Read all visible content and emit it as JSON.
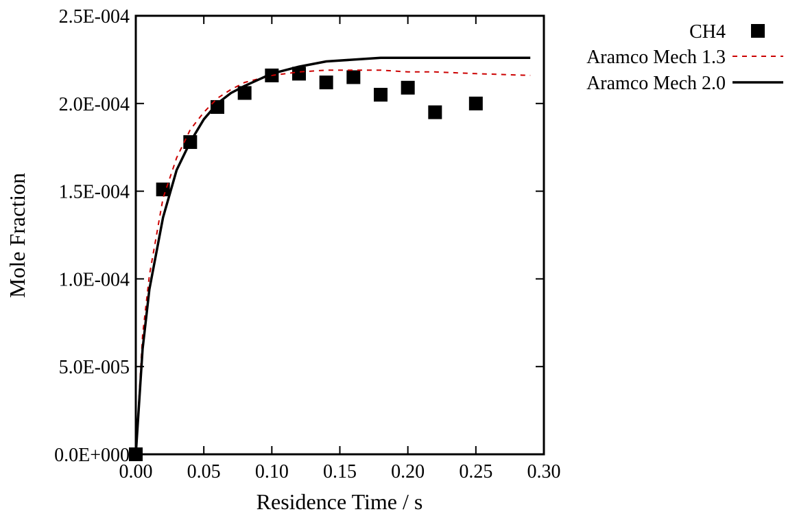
{
  "chart_data": {
    "type": "line",
    "title": "",
    "xlabel": "Residence Time / s",
    "ylabel": "Mole Fraction",
    "xlim": [
      0,
      0.3
    ],
    "ylim": [
      0,
      0.00025
    ],
    "x_ticks": [
      0,
      0.05,
      0.1,
      0.15,
      0.2,
      0.25,
      0.3
    ],
    "x_tick_labels": [
      "0.00",
      "0.05",
      "0.10",
      "0.15",
      "0.20",
      "0.25",
      "0.30"
    ],
    "y_ticks": [
      0,
      5e-05,
      0.0001,
      0.00015,
      0.0002,
      0.00025
    ],
    "y_tick_labels": [
      "0.0E+000",
      "5.0E-005",
      "1.0E-004",
      "1.5E-004",
      "2.0E-004",
      "2.5E-004"
    ],
    "grid": false,
    "legend_position": "outside-top-right",
    "series": [
      {
        "name": "CH4",
        "style": "markers",
        "marker": "square",
        "color": "#000000",
        "x": [
          0.0,
          0.02,
          0.04,
          0.06,
          0.08,
          0.1,
          0.12,
          0.14,
          0.16,
          0.18,
          0.2,
          0.22,
          0.25
        ],
        "y": [
          0.0,
          0.000151,
          0.000178,
          0.000198,
          0.000206,
          0.000216,
          0.000217,
          0.000212,
          0.000215,
          0.000205,
          0.000209,
          0.000195,
          0.0002
        ]
      },
      {
        "name": "Aramco Mech 1.3",
        "style": "dashed",
        "color": "#cc0000",
        "x": [
          0.0,
          0.005,
          0.01,
          0.02,
          0.03,
          0.04,
          0.05,
          0.06,
          0.07,
          0.08,
          0.1,
          0.12,
          0.14,
          0.16,
          0.18,
          0.2,
          0.22,
          0.25,
          0.29
        ],
        "y": [
          0.0,
          6.8e-05,
          0.000102,
          0.000146,
          0.000169,
          0.000185,
          0.000195,
          0.000203,
          0.000208,
          0.000212,
          0.000216,
          0.000218,
          0.000219,
          0.000219,
          0.000219,
          0.000218,
          0.000218,
          0.000217,
          0.000216
        ]
      },
      {
        "name": "Aramco Mech 2.0",
        "style": "solid",
        "color": "#000000",
        "x": [
          0.0,
          0.005,
          0.01,
          0.02,
          0.03,
          0.04,
          0.05,
          0.06,
          0.07,
          0.08,
          0.1,
          0.12,
          0.14,
          0.16,
          0.18,
          0.2,
          0.22,
          0.25,
          0.29
        ],
        "y": [
          0.0,
          6e-05,
          9.4e-05,
          0.000135,
          0.000162,
          0.000178,
          0.000191,
          0.0002,
          0.000206,
          0.00021,
          0.000217,
          0.000221,
          0.000224,
          0.000225,
          0.000226,
          0.000226,
          0.000226,
          0.000226,
          0.000226
        ]
      }
    ]
  }
}
